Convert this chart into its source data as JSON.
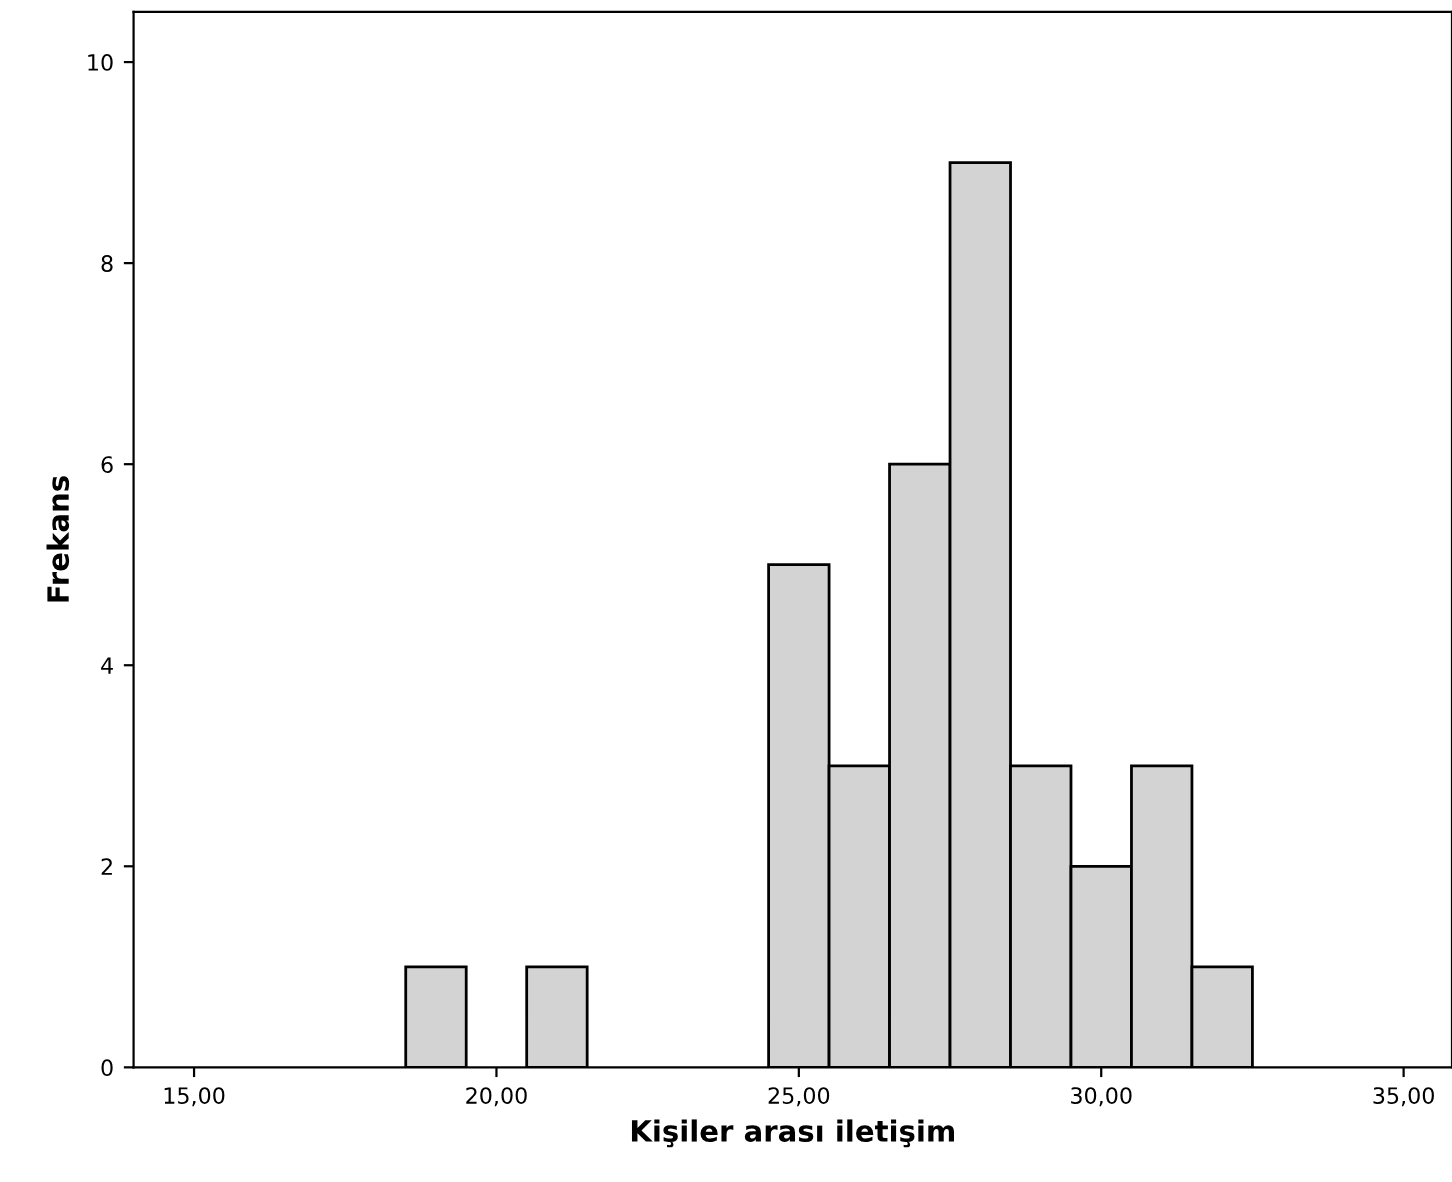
{
  "chart_data": {
    "type": "histogram",
    "xlabel": "Kişiler arası iletişim",
    "ylabel": "Frekans",
    "bins": [
      18.5,
      19.5,
      20.5,
      21.5,
      22.5,
      23.5,
      24.5,
      25.5,
      26.5,
      27.5,
      28.5,
      29.5,
      30.5,
      31.5,
      32.5
    ],
    "values": [
      1,
      0,
      1,
      0,
      0,
      0,
      5,
      3,
      6,
      9,
      3,
      2,
      3,
      1
    ],
    "color": "#d3d3d3",
    "xlim": [
      14,
      35.8
    ],
    "ylim": [
      0,
      10.5
    ],
    "xticks": [
      {
        "value": 15,
        "label": "15,00"
      },
      {
        "value": 20,
        "label": "20,00"
      },
      {
        "value": 25,
        "label": "25,00"
      },
      {
        "value": 30,
        "label": "30,00"
      },
      {
        "value": 35,
        "label": "35,00"
      }
    ],
    "yticks": [
      0,
      2,
      4,
      6,
      8,
      10
    ],
    "grid": false
  }
}
